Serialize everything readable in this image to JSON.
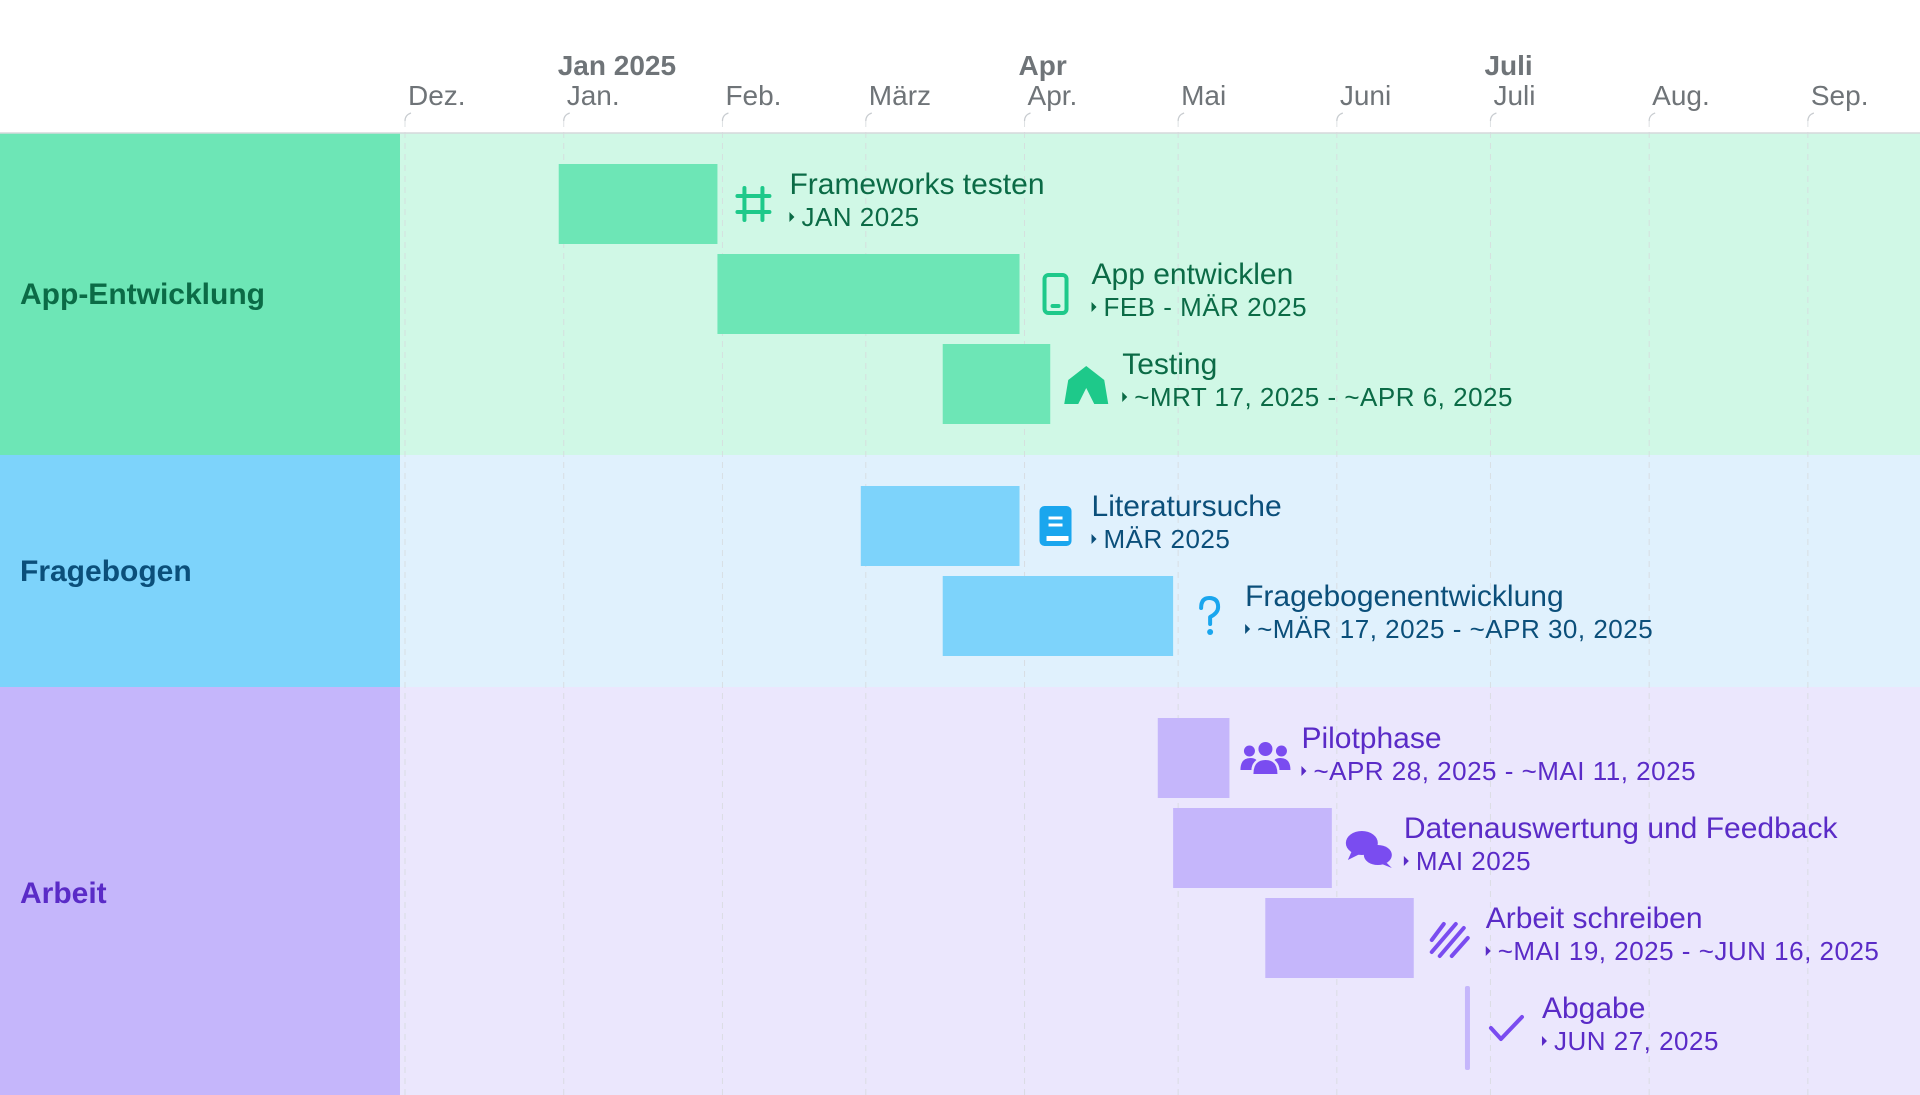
{
  "chart_data": {
    "type": "gantt",
    "timeline": {
      "start": "2024-12-01",
      "end": "2025-09-30",
      "month_labels": [
        "Dez.",
        "Jan.",
        "Feb.",
        "März",
        "Apr.",
        "Mai",
        "Juni",
        "Juli",
        "Aug.",
        "Sep."
      ],
      "upper_labels": [
        {
          "text": "Jan 2025",
          "month_index": 1
        },
        {
          "text": "Apr",
          "month_index": 4
        },
        {
          "text": "Juli",
          "month_index": 7
        }
      ],
      "grid": true
    },
    "groups": [
      {
        "name": "App-Entwicklung",
        "label_color": "#6de6b6",
        "band_color": "#d0f8e6",
        "bar_color": "#6de6b6",
        "text_color": "#0b6b46",
        "icon_color": "#1ec98a",
        "tasks": [
          {
            "title": "Frameworks testen",
            "date_text": "JAN 2025",
            "start": "2025-01-01",
            "end": "2025-01-31",
            "icon": "hashtag-icon",
            "kind": "bar"
          },
          {
            "title": "App entwicklen",
            "date_text": "FEB - MÄR 2025",
            "start": "2025-02-01",
            "end": "2025-03-31",
            "icon": "smartphone-icon",
            "kind": "bar"
          },
          {
            "title": "Testing",
            "date_text": "~MRT 17, 2025 - ~APR 6, 2025",
            "start": "2025-03-17",
            "end": "2025-04-06",
            "icon": "tent-icon",
            "kind": "bar"
          }
        ]
      },
      {
        "name": "Fragebogen",
        "label_color": "#7dd3fb",
        "band_color": "#e0f1fd",
        "bar_color": "#7dd3fb",
        "text_color": "#0b4f7a",
        "icon_color": "#1aa6ee",
        "tasks": [
          {
            "title": "Literatursuche",
            "date_text": "MÄR 2025",
            "start": "2025-03-01",
            "end": "2025-03-31",
            "icon": "book-icon",
            "kind": "bar"
          },
          {
            "title": "Fragebogenentwicklung",
            "date_text": "~MÄR 17, 2025 - ~APR 30, 2025",
            "start": "2025-03-17",
            "end": "2025-04-30",
            "icon": "question-icon",
            "kind": "bar"
          }
        ]
      },
      {
        "name": "Arbeit",
        "label_color": "#c5b6fb",
        "band_color": "#ebe7fd",
        "bar_color": "#c5b6fb",
        "text_color": "#5a2bc7",
        "icon_color": "#7a4cf0",
        "tasks": [
          {
            "title": "Pilotphase",
            "date_text": "~APR 28, 2025 - ~MAI 11, 2025",
            "start": "2025-04-28",
            "end": "2025-05-11",
            "icon": "users-icon",
            "kind": "bar"
          },
          {
            "title": "Datenauswertung und Feedback",
            "date_text": "MAI 2025",
            "start": "2025-05-01",
            "end": "2025-05-31",
            "icon": "chat-icon",
            "kind": "bar"
          },
          {
            "title": "Arbeit schreiben",
            "date_text": "~MAI 19, 2025 - ~JUN 16, 2025",
            "start": "2025-05-19",
            "end": "2025-06-16",
            "icon": "scribble-icon",
            "kind": "bar"
          },
          {
            "title": "Abgabe",
            "date_text": "JUN 27, 2025",
            "start": "2025-06-27",
            "end": "2025-06-27",
            "icon": "checkmark-icon",
            "kind": "milestone"
          }
        ]
      }
    ]
  }
}
